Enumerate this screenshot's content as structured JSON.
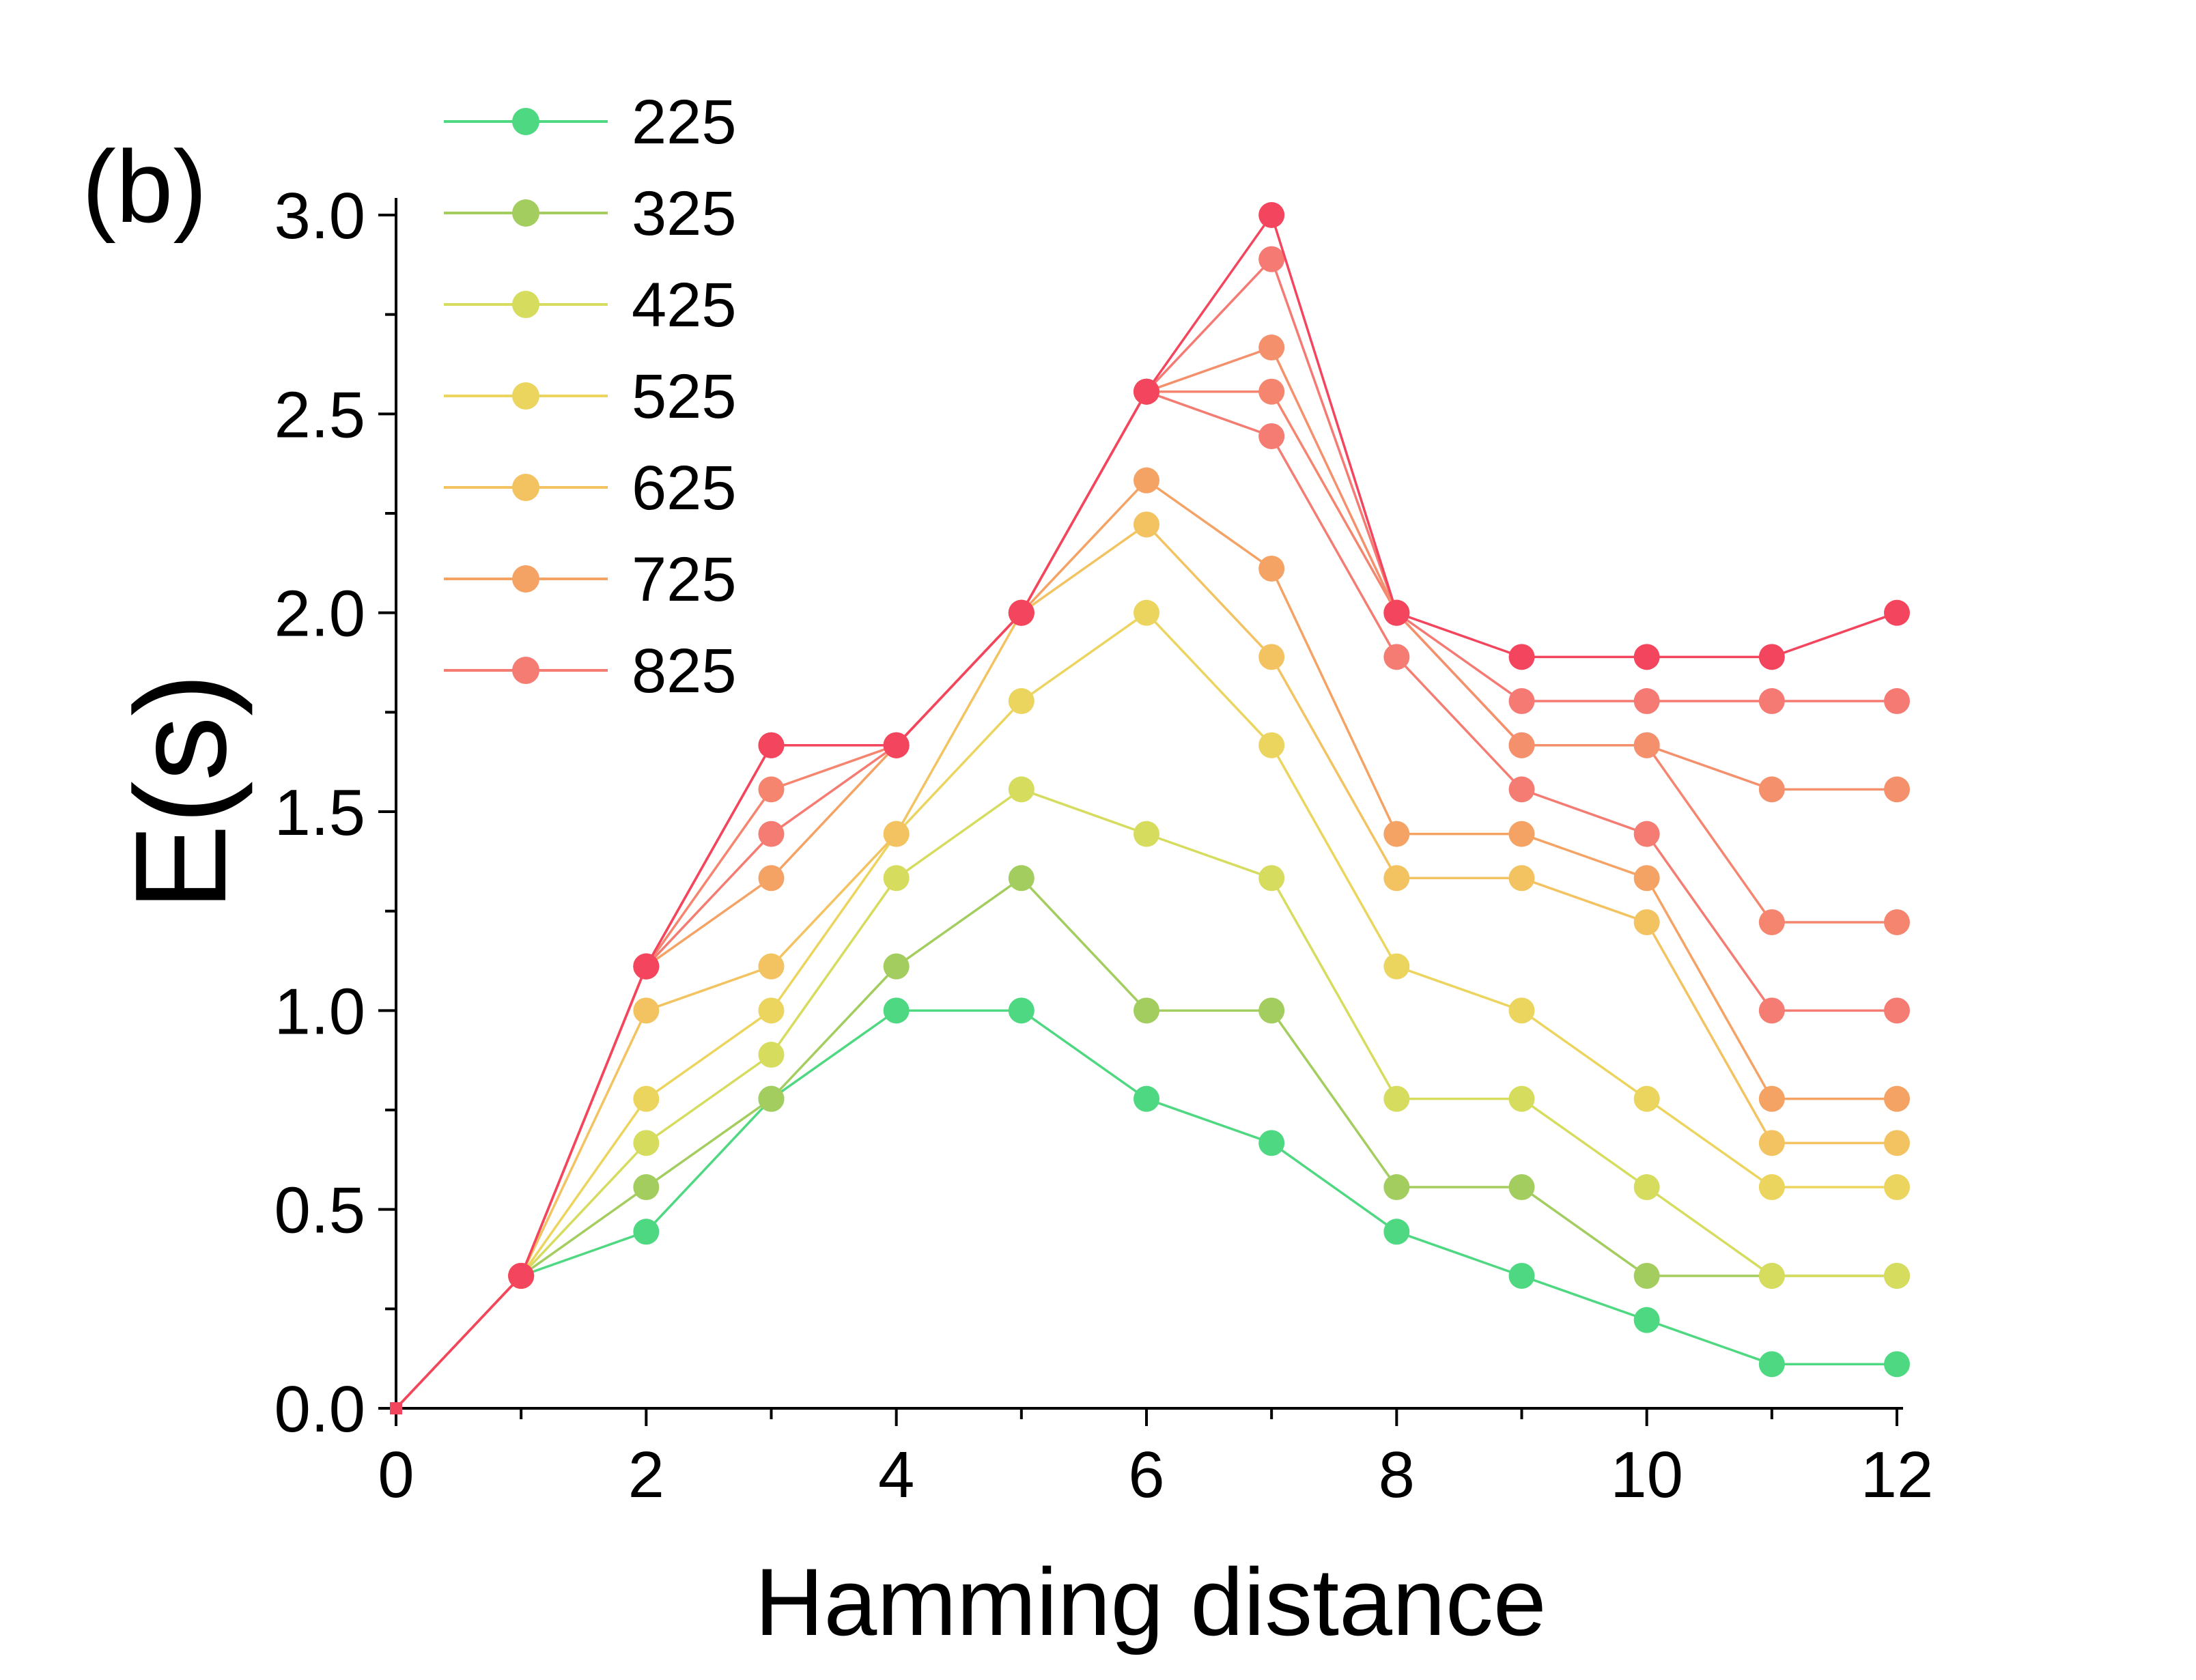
{
  "panel_label": "(b)",
  "chart_data": {
    "type": "line",
    "title": "",
    "xlabel": "Hamming distance",
    "ylabel": "E(s)",
    "xlim": [
      0,
      12.1
    ],
    "ylim": [
      0,
      3.05
    ],
    "x_ticks": [
      0,
      2,
      4,
      6,
      8,
      10,
      12
    ],
    "x_tick_labels": [
      "0",
      "2",
      "4",
      "6",
      "8",
      "10",
      "12"
    ],
    "y_ticks": [
      0.0,
      0.5,
      1.0,
      1.5,
      2.0,
      2.5,
      3.0
    ],
    "y_tick_labels": [
      "0.0",
      "0.5",
      "1.0",
      "1.5",
      "2.0",
      "2.5",
      "3.0"
    ],
    "grid": false,
    "legend_position": "top-left",
    "x": [
      0,
      1,
      2,
      3,
      4,
      5,
      6,
      7,
      8,
      9,
      10,
      11,
      12
    ],
    "series": [
      {
        "name": "225",
        "color": "#4fd882",
        "values": [
          0,
          0.333,
          0.444,
          0.778,
          1.0,
          1.0,
          0.778,
          0.667,
          0.444,
          0.333,
          0.222,
          0.111,
          0.111
        ]
      },
      {
        "name": "325",
        "color": "#a3cd5e",
        "values": [
          0,
          0.333,
          0.556,
          0.778,
          1.111,
          1.333,
          1.0,
          1.0,
          0.556,
          0.556,
          0.333,
          0.333,
          0.333
        ]
      },
      {
        "name": "425",
        "color": "#d6dc5e",
        "values": [
          0,
          0.333,
          0.667,
          0.889,
          1.333,
          1.556,
          1.444,
          1.333,
          0.778,
          0.778,
          0.556,
          0.333,
          0.333
        ]
      },
      {
        "name": "525",
        "color": "#ecd55f",
        "values": [
          0,
          0.333,
          0.778,
          1.0,
          1.444,
          1.778,
          2.0,
          1.667,
          1.111,
          1.0,
          0.778,
          0.556,
          0.556
        ]
      },
      {
        "name": "625",
        "color": "#f2c360",
        "values": [
          0,
          0.333,
          1.0,
          1.111,
          1.444,
          2.0,
          2.222,
          1.889,
          1.333,
          1.333,
          1.222,
          0.667,
          0.667
        ]
      },
      {
        "name": "725",
        "color": "#f5a265",
        "values": [
          0,
          0.333,
          1.111,
          1.333,
          1.667,
          2.0,
          2.333,
          2.111,
          1.444,
          1.444,
          1.333,
          0.778,
          0.778
        ]
      },
      {
        "name": "825",
        "color": "#f47c72",
        "values": [
          0,
          0.333,
          1.111,
          1.444,
          1.667,
          2.0,
          2.556,
          2.444,
          1.889,
          1.556,
          1.444,
          1.0,
          1.0
        ]
      },
      {
        "name": "",
        "color": "#f5856f",
        "values": [
          0,
          0.333,
          1.111,
          1.556,
          1.667,
          2.0,
          2.556,
          2.556,
          2.0,
          1.667,
          1.667,
          1.222,
          1.222
        ]
      },
      {
        "name": "",
        "color": "#f5906c",
        "values": [
          0,
          0.333,
          1.111,
          1.667,
          1.667,
          2.0,
          2.556,
          2.667,
          2.0,
          1.667,
          1.667,
          1.556,
          1.556
        ]
      },
      {
        "name": "",
        "color": "#f67a74",
        "values": [
          0,
          0.333,
          1.111,
          1.667,
          1.667,
          2.0,
          2.556,
          2.889,
          2.0,
          1.778,
          1.778,
          1.778,
          1.778
        ]
      },
      {
        "name": "",
        "color": "#f4455e",
        "values": [
          0,
          0.333,
          1.111,
          1.667,
          1.667,
          2.0,
          2.556,
          3.0,
          2.0,
          1.889,
          1.889,
          1.889,
          2.0
        ]
      }
    ],
    "legend": [
      {
        "label": "225",
        "color": "#4fd882"
      },
      {
        "label": "325",
        "color": "#a3cd5e"
      },
      {
        "label": "425",
        "color": "#d6dc5e"
      },
      {
        "label": "525",
        "color": "#ecd55f"
      },
      {
        "label": "625",
        "color": "#f2c360"
      },
      {
        "label": "725",
        "color": "#f5a265"
      },
      {
        "label": "825",
        "color": "#f47c72"
      }
    ]
  }
}
